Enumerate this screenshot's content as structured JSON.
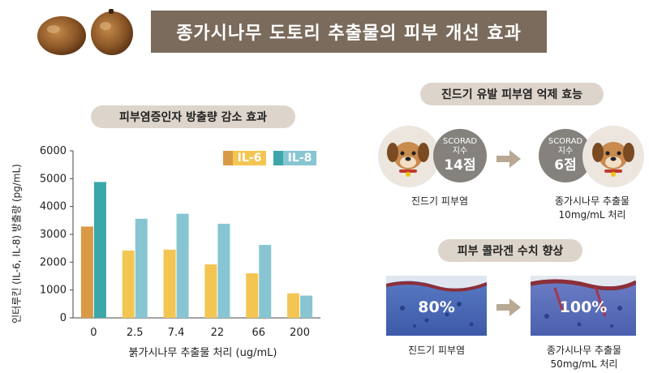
{
  "title": "종가시나무 도토리 추출물의 피부 개선 효과",
  "colors": {
    "banner_bg": "#7a6b5c",
    "pill_bg": "#ddd5cb",
    "il6": "#f3c553",
    "il6_first": "#d99a45",
    "il8": "#88c5d3",
    "il8_first": "#3ba7a8",
    "score_bg": "#85827d"
  },
  "left_panel": {
    "heading": "피부염증인자 방출량 감소 효과"
  },
  "chart_data": {
    "type": "bar",
    "title": "",
    "xlabel": "붉가시나무 추출물 처리 (ug/mL)",
    "ylabel": "인터루킨 (IL-6, IL-8) 방출량 (pg/mL)",
    "ylim": [
      0,
      6000
    ],
    "yticks": [
      "0",
      "1000",
      "2000",
      "3000",
      "4000",
      "5000",
      "6000"
    ],
    "categories": [
      "0",
      "2.5",
      "7.4",
      "22",
      "66",
      "200"
    ],
    "series": [
      {
        "name": "IL-6",
        "values": [
          3280,
          2420,
          2450,
          1920,
          1600,
          880
        ]
      },
      {
        "name": "IL-8",
        "values": [
          4880,
          3560,
          3740,
          3380,
          2620,
          800
        ]
      }
    ],
    "legend": "top-right",
    "grid": false
  },
  "right_top": {
    "heading": "진드기 유발 피부염 억제 효능",
    "before": {
      "score_label_1": "SCORAD",
      "score_label_2": "지수",
      "score_value": "14점",
      "caption": "진드기 피부염"
    },
    "after": {
      "score_label_1": "SCORAD",
      "score_label_2": "지수",
      "score_value": "6점",
      "caption_1": "종가시나무 추출물",
      "caption_2": "10mg/mL 처리"
    }
  },
  "right_bottom": {
    "heading": "피부 콜라겐 수치 향상",
    "before": {
      "value": "80%",
      "caption": "진드기 피부염"
    },
    "after": {
      "value": "100%",
      "caption_1": "종가시나무 추출물",
      "caption_2": "50mg/mL 처리"
    }
  },
  "icons": [
    "acorn-icon",
    "dog-icon",
    "arrow-right-icon",
    "tissue-image"
  ]
}
